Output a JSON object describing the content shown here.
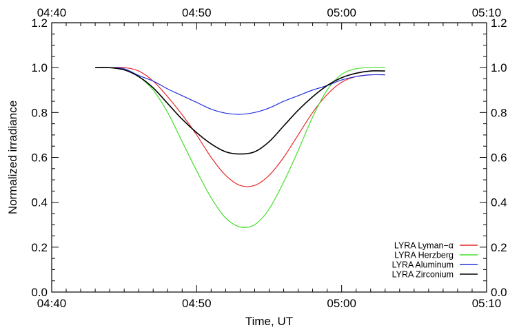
{
  "chart_data": {
    "type": "line",
    "title": "",
    "xlabel": "Time, UT",
    "ylabel": "Normalized irradiance",
    "xlim": [
      "04:40",
      "05:10"
    ],
    "ylim": [
      0.0,
      1.2
    ],
    "x_ticks": [
      "04:40",
      "04:50",
      "05:00",
      "05:10"
    ],
    "y_ticks": [
      "0.0",
      "0.2",
      "0.4",
      "0.6",
      "0.8",
      "1.0",
      "1.2"
    ],
    "right_y_ticks": [
      "0.0",
      "0.2",
      "0.4",
      "0.6",
      "0.8",
      "1.0",
      "1.2"
    ],
    "top_x_ticks": [
      "04:40",
      "04:50",
      "05:00",
      "05:10"
    ],
    "grid": false,
    "legend_position": "bottom-right",
    "series": [
      {
        "name": "LYRA Lyman−α",
        "color": "#e8262a",
        "x": [
          "04:43",
          "04:44",
          "04:45",
          "04:46",
          "04:47",
          "04:48",
          "04:49",
          "04:50",
          "04:51",
          "04:52",
          "04:53",
          "04:54",
          "04:55",
          "04:56",
          "04:57",
          "04:58",
          "04:59",
          "05:00",
          "05:01",
          "05:02",
          "05:03"
        ],
        "values": [
          1.0,
          1.0,
          1.0,
          0.985,
          0.94,
          0.87,
          0.79,
          0.7,
          0.6,
          0.52,
          0.475,
          0.475,
          0.52,
          0.6,
          0.7,
          0.8,
          0.88,
          0.935,
          0.96,
          0.968,
          0.968
        ]
      },
      {
        "name": "LYRA Herzberg",
        "color": "#44dd2a",
        "x": [
          "04:43",
          "04:44",
          "04:45",
          "04:46",
          "04:47",
          "04:48",
          "04:49",
          "04:50",
          "04:51",
          "04:52",
          "04:53",
          "04:54",
          "04:55",
          "04:56",
          "04:57",
          "04:58",
          "04:59",
          "05:00",
          "05:01",
          "05:02",
          "05:03"
        ],
        "values": [
          1.0,
          1.0,
          0.99,
          0.96,
          0.9,
          0.8,
          0.67,
          0.54,
          0.42,
          0.33,
          0.29,
          0.3,
          0.37,
          0.49,
          0.63,
          0.78,
          0.9,
          0.97,
          0.995,
          1.0,
          1.0
        ]
      },
      {
        "name": "LYRA Aluminum",
        "color": "#2233dd",
        "x": [
          "04:43",
          "04:44",
          "04:45",
          "04:46",
          "04:47",
          "04:48",
          "04:49",
          "04:50",
          "04:51",
          "04:52",
          "04:53",
          "04:54",
          "04:55",
          "04:56",
          "04:57",
          "04:58",
          "04:59",
          "05:00",
          "05:01",
          "05:02",
          "05:03"
        ],
        "values": [
          1.0,
          1.0,
          0.995,
          0.965,
          0.94,
          0.905,
          0.875,
          0.845,
          0.815,
          0.797,
          0.792,
          0.8,
          0.82,
          0.85,
          0.875,
          0.9,
          0.92,
          0.945,
          0.96,
          0.968,
          0.968
        ]
      },
      {
        "name": "LYRA Zirconium",
        "color": "#000000",
        "x": [
          "04:43",
          "04:44",
          "04:45",
          "04:46",
          "04:47",
          "04:48",
          "04:49",
          "04:50",
          "04:51",
          "04:52",
          "04:53",
          "04:54",
          "04:55",
          "04:56",
          "04:57",
          "04:58",
          "04:59",
          "05:00",
          "05:01",
          "05:02",
          "05:03"
        ],
        "values": [
          1.0,
          1.0,
          0.99,
          0.96,
          0.91,
          0.84,
          0.77,
          0.71,
          0.66,
          0.625,
          0.615,
          0.625,
          0.67,
          0.74,
          0.81,
          0.87,
          0.92,
          0.955,
          0.975,
          0.985,
          0.985
        ]
      }
    ]
  }
}
